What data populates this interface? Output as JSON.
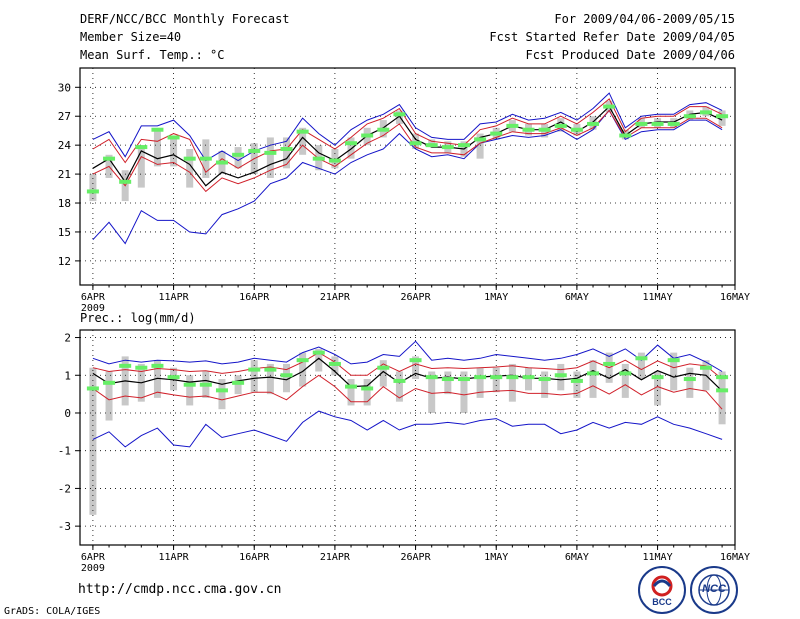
{
  "header": {
    "title": "DERF/NCC/BCC Monthly Forecast",
    "member_size": "Member Size=40",
    "variable": "Mean Surf. Temp.: °C",
    "period": "For 2009/04/06-2009/05/15",
    "started": "Fcst Started Refer Date 2009/04/05",
    "produced": "Fcst Produced Date 2009/04/06"
  },
  "prec_label": "Prec.: log(mm/d)",
  "footer": {
    "url": "http://cmdp.ncc.cma.gov.cn",
    "credit": "GrADS: COLA/IGES",
    "logo_bcc": "BCC",
    "logo_ncc": "NCC"
  },
  "colors": {
    "box": "#c8c8c8",
    "median": "#66ee66",
    "ens_mean": "#000000",
    "inner": "#d0202a",
    "outer": "#1414c8",
    "grid": "#000000"
  },
  "chart_data": [
    {
      "name": "temperature",
      "type": "line",
      "ylim": [
        9.5,
        32
      ],
      "yticks": [
        12,
        15,
        18,
        21,
        24,
        27,
        30
      ],
      "xticks": [
        {
          "day": 1,
          "label": "6APR",
          "sub": "2009"
        },
        {
          "day": 6,
          "label": "11APR"
        },
        {
          "day": 11,
          "label": "16APR"
        },
        {
          "day": 16,
          "label": "21APR"
        },
        {
          "day": 21,
          "label": "26APR"
        },
        {
          "day": 26,
          "label": "1MAY"
        },
        {
          "day": 31,
          "label": "6MAY"
        },
        {
          "day": 36,
          "label": "11MAY"
        },
        {
          "day": 41,
          "label": "16MAY"
        }
      ],
      "xlim": [
        0.2,
        40.8
      ],
      "days": [
        1,
        2,
        3,
        4,
        5,
        6,
        7,
        8,
        9,
        10,
        11,
        12,
        13,
        14,
        15,
        16,
        17,
        18,
        19,
        20,
        21,
        22,
        23,
        24,
        25,
        26,
        27,
        28,
        29,
        30,
        31,
        32,
        33,
        34,
        35,
        36,
        37,
        38,
        39,
        40
      ],
      "ens_mean": [
        21.6,
        22.6,
        20.2,
        23.4,
        22.6,
        23.0,
        22.0,
        19.8,
        21.2,
        20.6,
        21.2,
        22.0,
        22.6,
        24.8,
        23.2,
        22.4,
        23.6,
        25.0,
        25.8,
        27.0,
        24.6,
        23.8,
        23.8,
        23.6,
        24.8,
        25.2,
        26.0,
        25.6,
        25.6,
        26.4,
        25.4,
        26.4,
        28.0,
        25.0,
        26.2,
        26.4,
        26.4,
        27.2,
        27.4,
        26.6
      ],
      "upper_inner": [
        23.6,
        24.6,
        22.2,
        24.6,
        24.4,
        25.2,
        24.6,
        21.2,
        22.6,
        21.6,
        22.6,
        23.4,
        23.6,
        25.6,
        24.6,
        23.6,
        24.8,
        26.2,
        26.8,
        27.8,
        25.2,
        24.4,
        24.2,
        24.0,
        25.6,
        26.0,
        26.8,
        26.2,
        26.2,
        27.0,
        26.2,
        27.4,
        28.8,
        25.4,
        26.8,
        27.0,
        27.0,
        28.0,
        28.0,
        27.2
      ],
      "lower_inner": [
        21.0,
        21.8,
        19.8,
        22.8,
        22.0,
        22.2,
        21.2,
        19.2,
        20.6,
        20.0,
        20.6,
        21.4,
        22.0,
        24.0,
        22.6,
        21.8,
        23.0,
        24.2,
        25.0,
        26.2,
        23.8,
        23.2,
        23.2,
        23.0,
        24.2,
        24.8,
        25.4,
        25.2,
        25.2,
        25.8,
        25.0,
        25.8,
        27.6,
        24.8,
        25.8,
        25.8,
        25.8,
        26.8,
        26.8,
        25.8
      ],
      "upper_outer": [
        24.6,
        25.4,
        22.8,
        26.0,
        26.0,
        26.6,
        25.0,
        22.4,
        23.4,
        22.4,
        23.4,
        24.0,
        24.4,
        26.8,
        25.2,
        24.0,
        25.6,
        26.6,
        27.2,
        28.2,
        25.8,
        24.8,
        24.6,
        24.6,
        26.2,
        26.4,
        27.2,
        26.6,
        26.8,
        27.4,
        26.6,
        27.8,
        29.4,
        25.8,
        27.0,
        27.2,
        27.2,
        28.2,
        28.4,
        27.6
      ],
      "lower_outer": [
        14.2,
        16.0,
        13.8,
        17.2,
        16.2,
        16.2,
        15.0,
        14.8,
        16.8,
        17.4,
        18.2,
        20.0,
        20.6,
        22.2,
        21.6,
        21.0,
        22.2,
        23.0,
        23.6,
        25.2,
        23.6,
        22.8,
        23.0,
        22.6,
        24.2,
        24.6,
        25.0,
        24.8,
        25.0,
        25.6,
        24.6,
        25.6,
        27.6,
        24.6,
        25.4,
        25.6,
        25.6,
        26.6,
        26.6,
        25.6
      ],
      "median": [
        19.2,
        22.6,
        20.2,
        23.8,
        25.6,
        24.8,
        22.6,
        22.6,
        22.2,
        23.0,
        23.4,
        23.2,
        23.6,
        25.4,
        22.6,
        22.4,
        24.2,
        25.0,
        25.6,
        27.2,
        24.2,
        24.0,
        23.8,
        24.0,
        24.6,
        25.2,
        26.0,
        25.6,
        25.6,
        26.0,
        25.6,
        26.2,
        28.0,
        25.0,
        26.2,
        26.2,
        26.2,
        27.0,
        27.4,
        27.0
      ],
      "box_low": [
        18.2,
        20.6,
        18.2,
        19.6,
        21.8,
        21.8,
        19.6,
        20.6,
        21.0,
        21.6,
        21.0,
        20.6,
        21.6,
        23.0,
        21.4,
        21.6,
        22.6,
        24.0,
        24.8,
        26.2,
        23.6,
        23.8,
        23.2,
        22.8,
        22.6,
        24.6,
        25.4,
        25.0,
        24.8,
        25.4,
        25.0,
        25.6,
        27.4,
        24.6,
        25.8,
        25.8,
        25.8,
        26.6,
        27.0,
        26.0
      ],
      "box_high": [
        21.0,
        23.0,
        21.4,
        24.0,
        25.6,
        25.0,
        23.6,
        24.6,
        23.4,
        23.8,
        24.2,
        24.8,
        24.8,
        25.8,
        24.0,
        23.6,
        24.8,
        25.8,
        26.6,
        27.6,
        25.2,
        24.6,
        24.4,
        24.4,
        25.2,
        25.8,
        26.6,
        26.2,
        26.2,
        26.8,
        26.2,
        27.0,
        28.6,
        25.6,
        26.8,
        26.8,
        26.8,
        27.6,
        28.0,
        27.6
      ]
    },
    {
      "name": "precipitation",
      "type": "line",
      "ylim": [
        -3.5,
        2.2
      ],
      "yticks": [
        -3,
        -2,
        -1,
        0,
        1,
        2
      ],
      "xticks": [
        {
          "day": 1,
          "label": "6APR",
          "sub": "2009"
        },
        {
          "day": 6,
          "label": "11APR"
        },
        {
          "day": 11,
          "label": "16APR"
        },
        {
          "day": 16,
          "label": "21APR"
        },
        {
          "day": 21,
          "label": "26APR"
        },
        {
          "day": 26,
          "label": "1MAY"
        },
        {
          "day": 31,
          "label": "6MAY"
        },
        {
          "day": 36,
          "label": "11MAY"
        },
        {
          "day": 41,
          "label": "16MAY"
        }
      ],
      "xlim": [
        0.2,
        40.8
      ],
      "days": [
        1,
        2,
        3,
        4,
        5,
        6,
        7,
        8,
        9,
        10,
        11,
        12,
        13,
        14,
        15,
        16,
        17,
        18,
        19,
        20,
        21,
        22,
        23,
        24,
        25,
        26,
        27,
        28,
        29,
        30,
        31,
        32,
        33,
        34,
        35,
        36,
        37,
        38,
        39,
        40
      ],
      "ens_mean": [
        1.05,
        0.78,
        0.85,
        0.8,
        0.92,
        0.88,
        0.82,
        0.86,
        0.76,
        0.85,
        0.92,
        0.95,
        0.88,
        1.1,
        1.45,
        1.1,
        0.7,
        0.72,
        1.1,
        0.8,
        1.05,
        0.92,
        0.95,
        0.9,
        0.95,
        0.98,
        1.0,
        0.92,
        0.92,
        0.88,
        0.92,
        1.12,
        0.92,
        1.15,
        0.88,
        1.12,
        0.95,
        1.05,
        1.0,
        0.58
      ],
      "upper_inner": [
        1.2,
        1.1,
        1.15,
        1.1,
        1.18,
        1.15,
        1.1,
        1.12,
        1.05,
        1.1,
        1.18,
        1.22,
        1.15,
        1.35,
        1.6,
        1.35,
        1.0,
        1.0,
        1.3,
        1.1,
        1.3,
        1.18,
        1.2,
        1.18,
        1.2,
        1.22,
        1.25,
        1.2,
        1.18,
        1.15,
        1.2,
        1.38,
        1.2,
        1.4,
        1.15,
        1.38,
        1.2,
        1.3,
        1.25,
        0.9
      ],
      "lower_inner": [
        0.65,
        0.35,
        0.45,
        0.4,
        0.55,
        0.48,
        0.42,
        0.45,
        0.35,
        0.45,
        0.55,
        0.55,
        0.35,
        0.7,
        1.0,
        0.7,
        0.3,
        0.3,
        0.7,
        0.4,
        0.65,
        0.52,
        0.55,
        0.48,
        0.55,
        0.58,
        0.6,
        0.52,
        0.52,
        0.48,
        0.52,
        0.72,
        0.5,
        0.75,
        0.48,
        0.7,
        0.55,
        0.65,
        0.58,
        0.1
      ],
      "upper_outer": [
        1.45,
        1.3,
        1.4,
        1.35,
        1.4,
        1.38,
        1.35,
        1.38,
        1.3,
        1.35,
        1.45,
        1.4,
        1.35,
        1.6,
        1.75,
        1.55,
        1.3,
        1.35,
        1.55,
        1.5,
        1.9,
        1.4,
        1.45,
        1.4,
        1.45,
        1.55,
        1.5,
        1.45,
        1.4,
        1.45,
        1.55,
        1.7,
        1.5,
        1.7,
        1.4,
        1.8,
        1.45,
        1.55,
        1.35,
        1.1
      ],
      "lower_outer": [
        -0.7,
        -0.5,
        -0.9,
        -0.6,
        -0.4,
        -0.85,
        -0.9,
        -0.3,
        -0.65,
        -0.55,
        -0.45,
        -0.6,
        -0.75,
        -0.25,
        0.05,
        -0.1,
        -0.2,
        -0.45,
        -0.2,
        -0.45,
        -0.3,
        -0.3,
        -0.25,
        -0.3,
        -0.2,
        -0.15,
        -0.35,
        -0.3,
        -0.3,
        -0.55,
        -0.45,
        -0.25,
        -0.4,
        -0.25,
        -0.3,
        -0.1,
        -0.3,
        -0.4,
        -0.55,
        -0.7
      ],
      "median": [
        0.65,
        0.8,
        1.25,
        1.2,
        1.25,
        0.95,
        0.75,
        0.75,
        0.6,
        0.8,
        1.15,
        1.15,
        1.0,
        1.4,
        1.6,
        1.3,
        0.7,
        0.65,
        1.2,
        0.85,
        1.4,
        0.95,
        0.9,
        0.9,
        0.95,
        0.95,
        0.95,
        0.95,
        0.9,
        1.0,
        0.85,
        1.05,
        1.3,
        1.05,
        1.45,
        0.95,
        1.4,
        0.9,
        1.2,
        0.95
      ],
      "median2": [
        null,
        null,
        null,
        null,
        null,
        null,
        null,
        null,
        null,
        null,
        null,
        null,
        null,
        null,
        null,
        null,
        null,
        null,
        null,
        null,
        null,
        null,
        null,
        null,
        null,
        null,
        null,
        null,
        null,
        null,
        null,
        null,
        null,
        null,
        null,
        null,
        null,
        null,
        null,
        0.6
      ],
      "box_low": [
        -2.7,
        -0.2,
        0.2,
        0.3,
        0.4,
        0.6,
        0.2,
        0.4,
        0.1,
        0.5,
        0.55,
        0.5,
        0.55,
        0.7,
        1.1,
        1.0,
        0.2,
        0.2,
        0.7,
        0.3,
        0.9,
        0.0,
        0.5,
        0.0,
        0.4,
        0.55,
        0.3,
        0.6,
        0.4,
        0.6,
        0.4,
        0.4,
        0.8,
        0.4,
        0.9,
        0.2,
        0.6,
        0.4,
        0.6,
        -0.3
      ],
      "box_high": [
        1.2,
        1.1,
        1.5,
        1.3,
        1.4,
        1.2,
        1.0,
        1.1,
        0.9,
        1.0,
        1.4,
        1.3,
        1.3,
        1.6,
        1.7,
        1.5,
        0.9,
        0.9,
        1.4,
        1.1,
        1.5,
        1.1,
        1.1,
        1.1,
        1.2,
        1.2,
        1.3,
        1.2,
        1.1,
        1.3,
        1.1,
        1.4,
        1.6,
        1.3,
        1.6,
        1.1,
        1.6,
        1.2,
        1.4,
        1.1
      ]
    }
  ]
}
